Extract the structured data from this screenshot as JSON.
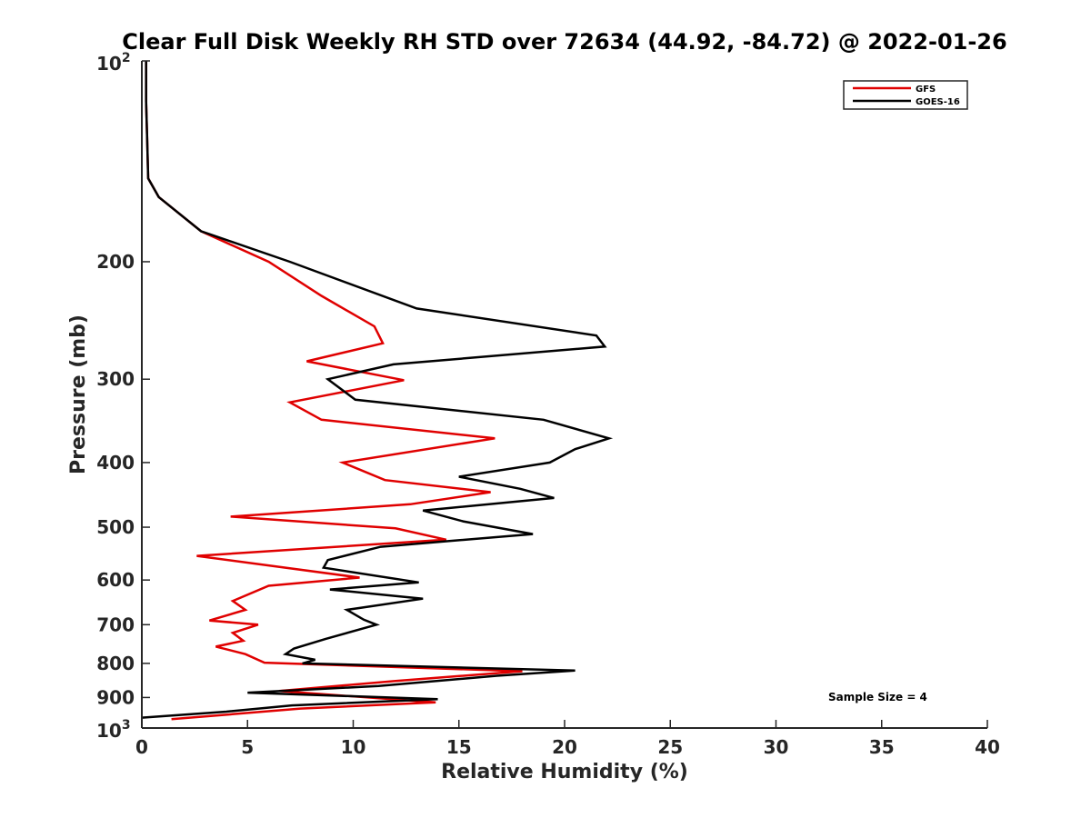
{
  "chart_data": {
    "type": "line",
    "title": "Clear Full Disk Weekly RH STD over 72634 (44.92, -84.72) @ 2022-01-26",
    "xlabel": "Relative Humidity (%)",
    "ylabel": "Pressure (mb)",
    "xlim": [
      0,
      40
    ],
    "ylim": [
      100,
      1000
    ],
    "yscale": "log",
    "y_reversed": true,
    "x_ticks": [
      0,
      5,
      10,
      15,
      20,
      25,
      30,
      35,
      40
    ],
    "x_tick_labels": [
      "0",
      "5",
      "10",
      "15",
      "20",
      "25",
      "30",
      "35",
      "40"
    ],
    "y_ticks": [
      200,
      300,
      400,
      500,
      600,
      700,
      800,
      900
    ],
    "y_tick_labels": [
      "200",
      "300",
      "400",
      "500",
      "600",
      "700",
      "800",
      "900"
    ],
    "y_top_label": {
      "base": "10",
      "exp": "2"
    },
    "y_bottom_label": {
      "base": "10",
      "exp": "3"
    },
    "grid": false,
    "legend_position": "top-right",
    "annotation": "Sample Size = 4",
    "series": [
      {
        "name": "GFS",
        "color": "#e00000",
        "points": [
          [
            0.2,
            100
          ],
          [
            0.2,
            115
          ],
          [
            0.25,
            130
          ],
          [
            0.3,
            150
          ],
          [
            0.8,
            160
          ],
          [
            2.8,
            180
          ],
          [
            6.0,
            200
          ],
          [
            8.5,
            225
          ],
          [
            11.0,
            250
          ],
          [
            11.4,
            265
          ],
          [
            7.8,
            282
          ],
          [
            12.4,
            301
          ],
          [
            7.0,
            325
          ],
          [
            8.5,
            345
          ],
          [
            16.7,
            368
          ],
          [
            9.5,
            400
          ],
          [
            11.5,
            425
          ],
          [
            16.5,
            443
          ],
          [
            12.7,
            462
          ],
          [
            4.2,
            482
          ],
          [
            12.0,
            502
          ],
          [
            14.4,
            522
          ],
          [
            2.6,
            552
          ],
          [
            10.3,
            595
          ],
          [
            6.0,
            612
          ],
          [
            4.3,
            645
          ],
          [
            4.9,
            665
          ],
          [
            3.2,
            690
          ],
          [
            5.5,
            700
          ],
          [
            4.3,
            720
          ],
          [
            4.8,
            740
          ],
          [
            3.5,
            755
          ],
          [
            4.9,
            775
          ],
          [
            5.8,
            798
          ],
          [
            18.0,
            822
          ],
          [
            12.0,
            850
          ],
          [
            6.5,
            880
          ],
          [
            13.9,
            915
          ],
          [
            7.5,
            935
          ],
          [
            1.4,
            970
          ]
        ]
      },
      {
        "name": "GOES-16",
        "color": "#000000",
        "points": [
          [
            0.2,
            100
          ],
          [
            0.2,
            115
          ],
          [
            0.25,
            130
          ],
          [
            0.3,
            150
          ],
          [
            0.8,
            160
          ],
          [
            2.8,
            180
          ],
          [
            7.0,
            200
          ],
          [
            13.0,
            235
          ],
          [
            21.5,
            258
          ],
          [
            21.9,
            268
          ],
          [
            11.9,
            285
          ],
          [
            8.8,
            300
          ],
          [
            10.1,
            322
          ],
          [
            19.0,
            345
          ],
          [
            22.1,
            368
          ],
          [
            20.5,
            382
          ],
          [
            19.3,
            400
          ],
          [
            15.0,
            420
          ],
          [
            17.9,
            438
          ],
          [
            19.5,
            452
          ],
          [
            13.3,
            472
          ],
          [
            15.2,
            490
          ],
          [
            18.5,
            512
          ],
          [
            11.3,
            535
          ],
          [
            8.8,
            560
          ],
          [
            8.6,
            575
          ],
          [
            13.1,
            605
          ],
          [
            8.9,
            620
          ],
          [
            13.3,
            640
          ],
          [
            9.7,
            665
          ],
          [
            10.5,
            688
          ],
          [
            11.1,
            700
          ],
          [
            8.7,
            735
          ],
          [
            7.2,
            760
          ],
          [
            6.8,
            775
          ],
          [
            8.2,
            790
          ],
          [
            7.6,
            800
          ],
          [
            20.5,
            820
          ],
          [
            16.8,
            835
          ],
          [
            11.2,
            865
          ],
          [
            5.0,
            885
          ],
          [
            14.0,
            905
          ],
          [
            7.1,
            925
          ],
          [
            4.0,
            945
          ],
          [
            0.0,
            965
          ]
        ]
      }
    ]
  }
}
